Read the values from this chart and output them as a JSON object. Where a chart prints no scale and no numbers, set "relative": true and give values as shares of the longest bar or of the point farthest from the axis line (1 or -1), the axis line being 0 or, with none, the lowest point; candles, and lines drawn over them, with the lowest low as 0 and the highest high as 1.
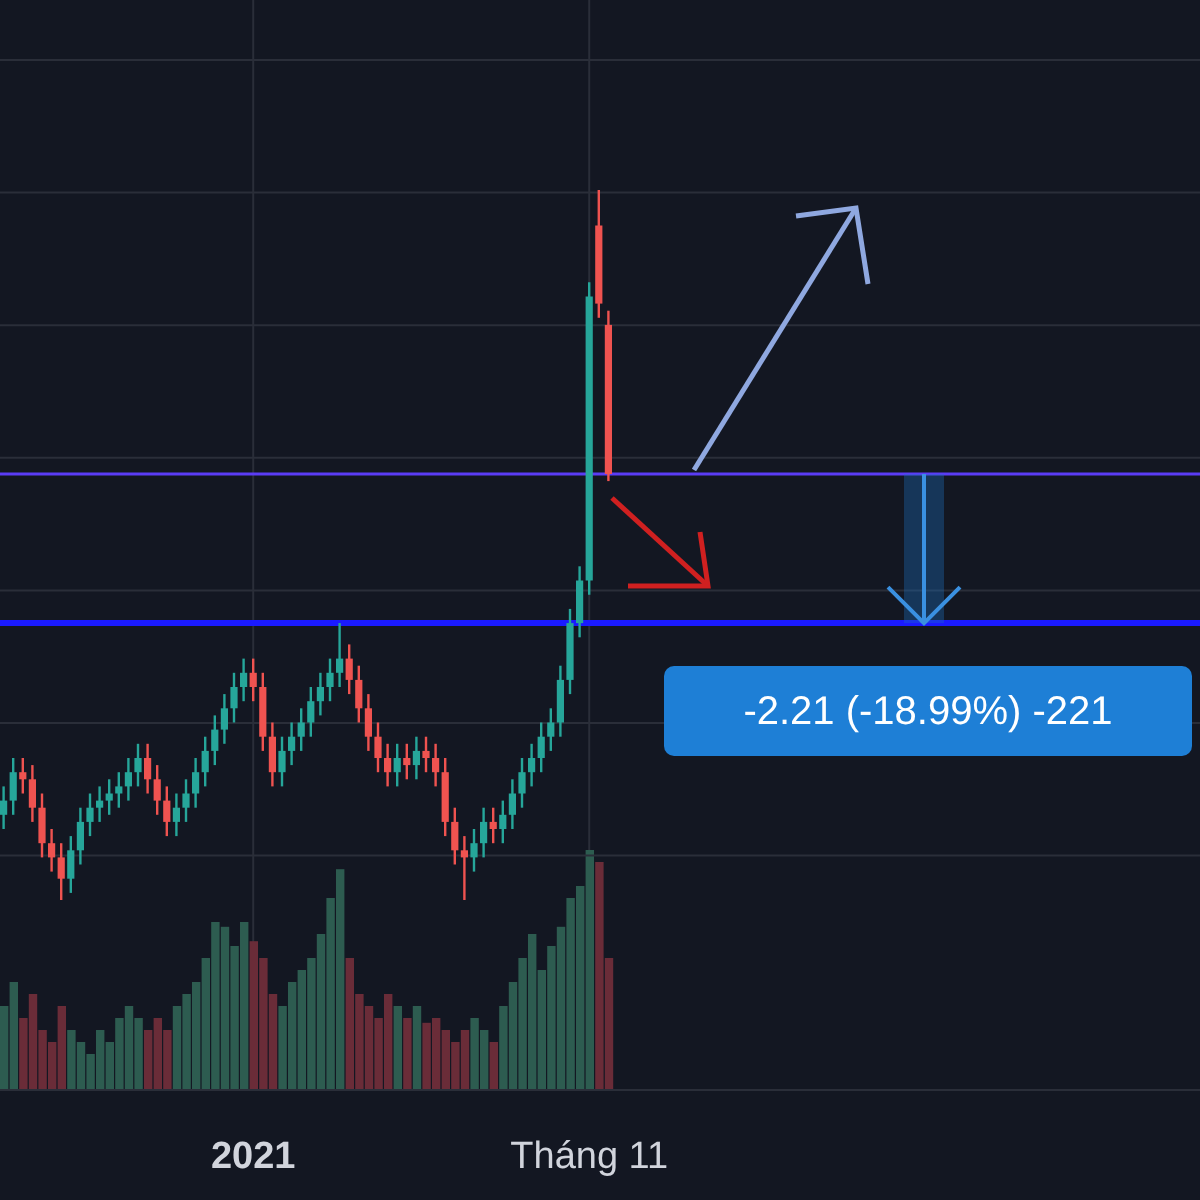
{
  "chart_data": [
    {
      "type": "candlestick",
      "relative": true,
      "grid": "y",
      "tick_labels": false,
      "categories": [
        null,
        null,
        null,
        null,
        null,
        null,
        null,
        null,
        null,
        null,
        null,
        null,
        null,
        null,
        null,
        null,
        null,
        null,
        null,
        null,
        null,
        null,
        null,
        null,
        null,
        null,
        null,
        null,
        null,
        null,
        null,
        null,
        null,
        null,
        null,
        null,
        null,
        null,
        null,
        null,
        null,
        null,
        null,
        null,
        null,
        null,
        null,
        null,
        null,
        null,
        null,
        null,
        null,
        null,
        null,
        null,
        null,
        null,
        null,
        null,
        null,
        null,
        null,
        null
      ],
      "ohlc": [
        [
          0.12,
          0.16,
          0.1,
          0.14
        ],
        [
          0.14,
          0.2,
          0.12,
          0.18
        ],
        [
          0.18,
          0.2,
          0.15,
          0.17
        ],
        [
          0.17,
          0.19,
          0.11,
          0.13
        ],
        [
          0.13,
          0.15,
          0.06,
          0.08
        ],
        [
          0.08,
          0.1,
          0.04,
          0.06
        ],
        [
          0.06,
          0.08,
          0.0,
          0.03
        ],
        [
          0.03,
          0.09,
          0.01,
          0.07
        ],
        [
          0.07,
          0.13,
          0.05,
          0.11
        ],
        [
          0.11,
          0.15,
          0.09,
          0.13
        ],
        [
          0.13,
          0.16,
          0.11,
          0.14
        ],
        [
          0.14,
          0.17,
          0.12,
          0.15
        ],
        [
          0.15,
          0.18,
          0.13,
          0.16
        ],
        [
          0.16,
          0.2,
          0.14,
          0.18
        ],
        [
          0.18,
          0.22,
          0.16,
          0.2
        ],
        [
          0.2,
          0.22,
          0.15,
          0.17
        ],
        [
          0.17,
          0.19,
          0.12,
          0.14
        ],
        [
          0.14,
          0.16,
          0.09,
          0.11
        ],
        [
          0.11,
          0.15,
          0.09,
          0.13
        ],
        [
          0.13,
          0.17,
          0.11,
          0.15
        ],
        [
          0.15,
          0.2,
          0.13,
          0.18
        ],
        [
          0.18,
          0.23,
          0.16,
          0.21
        ],
        [
          0.21,
          0.26,
          0.19,
          0.24
        ],
        [
          0.24,
          0.29,
          0.22,
          0.27
        ],
        [
          0.27,
          0.32,
          0.25,
          0.3
        ],
        [
          0.3,
          0.34,
          0.28,
          0.32
        ],
        [
          0.32,
          0.34,
          0.28,
          0.3
        ],
        [
          0.3,
          0.32,
          0.21,
          0.23
        ],
        [
          0.23,
          0.25,
          0.16,
          0.18
        ],
        [
          0.18,
          0.23,
          0.16,
          0.21
        ],
        [
          0.21,
          0.25,
          0.19,
          0.23
        ],
        [
          0.23,
          0.27,
          0.21,
          0.25
        ],
        [
          0.25,
          0.3,
          0.23,
          0.28
        ],
        [
          0.28,
          0.32,
          0.26,
          0.3
        ],
        [
          0.3,
          0.34,
          0.28,
          0.32
        ],
        [
          0.32,
          0.39,
          0.3,
          0.34
        ],
        [
          0.34,
          0.36,
          0.29,
          0.31
        ],
        [
          0.31,
          0.33,
          0.25,
          0.27
        ],
        [
          0.27,
          0.29,
          0.21,
          0.23
        ],
        [
          0.23,
          0.25,
          0.18,
          0.2
        ],
        [
          0.2,
          0.22,
          0.16,
          0.18
        ],
        [
          0.18,
          0.22,
          0.16,
          0.2
        ],
        [
          0.2,
          0.22,
          0.17,
          0.19
        ],
        [
          0.19,
          0.23,
          0.17,
          0.21
        ],
        [
          0.21,
          0.23,
          0.18,
          0.2
        ],
        [
          0.2,
          0.22,
          0.16,
          0.18
        ],
        [
          0.18,
          0.2,
          0.09,
          0.11
        ],
        [
          0.11,
          0.13,
          0.05,
          0.07
        ],
        [
          0.07,
          0.09,
          0.0,
          0.06
        ],
        [
          0.06,
          0.1,
          0.04,
          0.08
        ],
        [
          0.08,
          0.13,
          0.06,
          0.11
        ],
        [
          0.11,
          0.13,
          0.08,
          0.1
        ],
        [
          0.1,
          0.14,
          0.08,
          0.12
        ],
        [
          0.12,
          0.17,
          0.1,
          0.15
        ],
        [
          0.15,
          0.2,
          0.13,
          0.18
        ],
        [
          0.18,
          0.22,
          0.16,
          0.2
        ],
        [
          0.2,
          0.25,
          0.18,
          0.23
        ],
        [
          0.23,
          0.27,
          0.21,
          0.25
        ],
        [
          0.25,
          0.33,
          0.23,
          0.31
        ],
        [
          0.31,
          0.41,
          0.29,
          0.39
        ],
        [
          0.39,
          0.47,
          0.37,
          0.45
        ],
        [
          0.45,
          0.87,
          0.43,
          0.85
        ],
        [
          0.95,
          1.0,
          0.82,
          0.84
        ],
        [
          0.81,
          0.83,
          0.59,
          0.6
        ]
      ],
      "ref_lines": [
        {
          "axis": "y",
          "value": 0.6,
          "color": "#5b3cf5"
        },
        {
          "axis": "y",
          "value": 0.39,
          "color": "#1a1aff"
        }
      ],
      "annotations": [
        "-2.21 (-18.99%) -221"
      ]
    },
    {
      "type": "bar",
      "relative": true,
      "grid": "x",
      "tick_labels": "x",
      "categories": [
        null,
        null,
        null,
        null,
        null,
        null,
        null,
        null,
        null,
        null,
        null,
        null,
        null,
        null,
        null,
        null,
        null,
        null,
        null,
        null,
        null,
        null,
        null,
        null,
        null,
        null,
        "2021",
        null,
        null,
        null,
        null,
        null,
        null,
        null,
        null,
        null,
        null,
        null,
        null,
        null,
        null,
        null,
        null,
        null,
        null,
        null,
        null,
        null,
        null,
        null,
        null,
        null,
        null,
        null,
        null,
        null,
        null,
        null,
        null,
        null,
        null,
        "Tháng 11",
        null,
        null
      ],
      "values": [
        0.35,
        0.45,
        0.3,
        0.4,
        0.25,
        0.2,
        0.35,
        0.25,
        0.2,
        0.15,
        0.25,
        0.2,
        0.3,
        0.35,
        0.3,
        0.25,
        0.3,
        0.25,
        0.35,
        0.4,
        0.45,
        0.55,
        0.7,
        0.68,
        0.6,
        0.7,
        0.62,
        0.55,
        0.4,
        0.35,
        0.45,
        0.5,
        0.55,
        0.65,
        0.8,
        0.92,
        0.55,
        0.4,
        0.35,
        0.3,
        0.4,
        0.35,
        0.3,
        0.35,
        0.28,
        0.3,
        0.25,
        0.2,
        0.25,
        0.3,
        0.25,
        0.2,
        0.35,
        0.45,
        0.55,
        0.65,
        0.5,
        0.6,
        0.68,
        0.8,
        0.85,
        1.0,
        0.95,
        0.55
      ],
      "colors": [
        "#2d5c50",
        "#2d5c50",
        "#6a2c38",
        "#6a2c38",
        "#6a2c38",
        "#6a2c38",
        "#6a2c38",
        "#2d5c50",
        "#2d5c50",
        "#2d5c50",
        "#2d5c50",
        "#2d5c50",
        "#2d5c50",
        "#2d5c50",
        "#2d5c50",
        "#6a2c38",
        "#6a2c38",
        "#6a2c38",
        "#2d5c50",
        "#2d5c50",
        "#2d5c50",
        "#2d5c50",
        "#2d5c50",
        "#2d5c50",
        "#2d5c50",
        "#2d5c50",
        "#6a2c38",
        "#6a2c38",
        "#6a2c38",
        "#2d5c50",
        "#2d5c50",
        "#2d5c50",
        "#2d5c50",
        "#2d5c50",
        "#2d5c50",
        "#2d5c50",
        "#6a2c38",
        "#6a2c38",
        "#6a2c38",
        "#6a2c38",
        "#6a2c38",
        "#2d5c50",
        "#6a2c38",
        "#2d5c50",
        "#6a2c38",
        "#6a2c38",
        "#6a2c38",
        "#6a2c38",
        "#6a2c38",
        "#2d5c50",
        "#2d5c50",
        "#6a2c38",
        "#2d5c50",
        "#2d5c50",
        "#2d5c50",
        "#2d5c50",
        "#2d5c50",
        "#2d5c50",
        "#2d5c50",
        "#2d5c50",
        "#2d5c50",
        "#2d5c50",
        "#6a2c38",
        "#6a2c38"
      ]
    }
  ]
}
